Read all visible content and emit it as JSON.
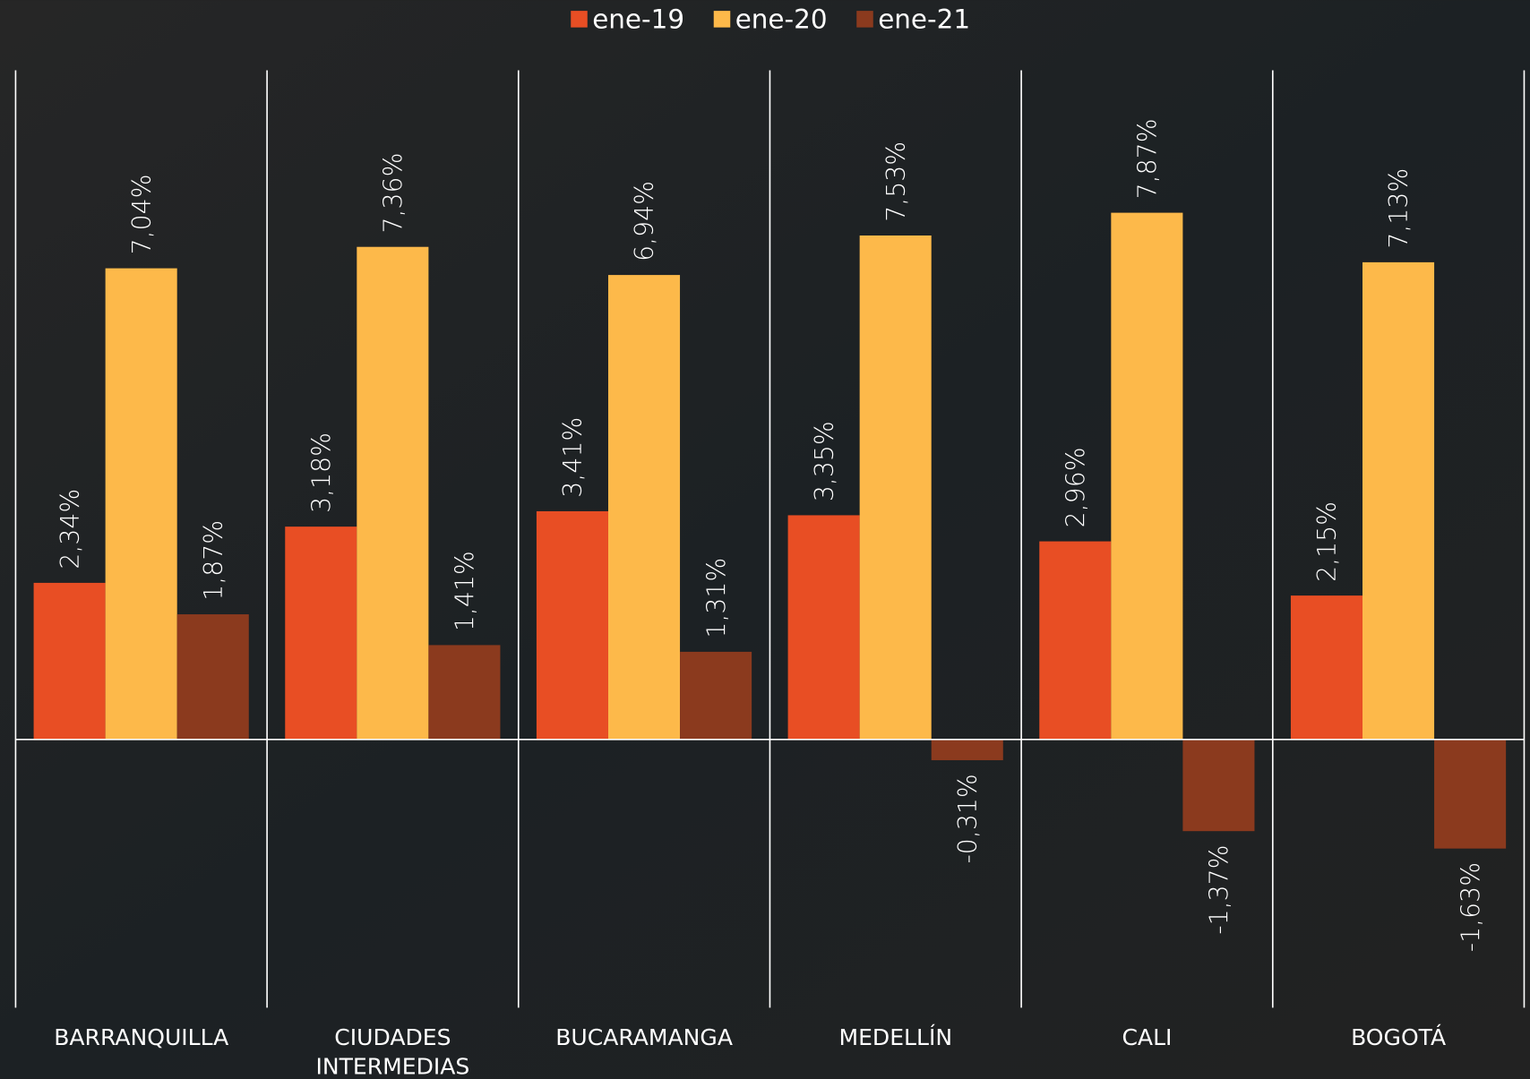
{
  "chart_data": {
    "type": "bar",
    "categories": [
      "BARRANQUILLA",
      "CIUDADES INTERMEDIAS",
      "BUCARAMANGA",
      "MEDELLÍN",
      "CALI",
      "BOGOTÁ"
    ],
    "series": [
      {
        "name": "ene-19",
        "color": "#e84e24",
        "values": [
          2.34,
          3.18,
          3.41,
          3.35,
          2.96,
          2.15
        ],
        "value_labels": [
          "2,34%",
          "3,18%",
          "3,41%",
          "3,35%",
          "2,96%",
          "2,15%"
        ]
      },
      {
        "name": "ene-20",
        "color": "#fdb94a",
        "values": [
          7.04,
          7.36,
          6.94,
          7.53,
          7.87,
          7.13
        ],
        "value_labels": [
          "7,04%",
          "7,36%",
          "6,94%",
          "7,53%",
          "7,87%",
          "7,13%"
        ]
      },
      {
        "name": "ene-21",
        "color": "#8b3a1e",
        "values": [
          1.87,
          1.41,
          1.31,
          -0.31,
          -1.37,
          -1.63
        ],
        "value_labels": [
          "1,87%",
          "1,41%",
          "1,31%",
          "-0,31%",
          "-1,37%",
          "-1,63%"
        ]
      }
    ],
    "legend": "top"
  }
}
